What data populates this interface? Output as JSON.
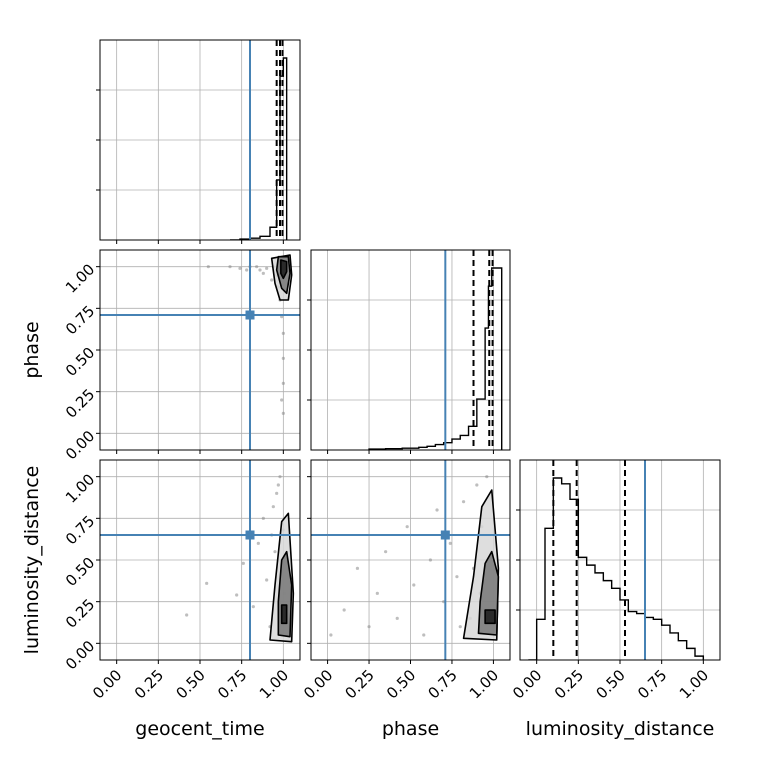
{
  "chart_data": {
    "type": "corner",
    "parameters": [
      "geocent_time",
      "phase",
      "luminosity_distance"
    ],
    "tick_values": [
      0.0,
      0.25,
      0.5,
      0.75,
      1.0
    ],
    "tick_labels": [
      "0.00",
      "0.25",
      "0.50",
      "0.75",
      "1.00"
    ],
    "axis_range": [
      -0.1,
      1.1
    ],
    "grid": true,
    "truths": {
      "geocent_time": 0.8,
      "phase": 0.71,
      "luminosity_distance": 0.65
    },
    "truth_color": "#4682b4",
    "histograms": [
      {
        "parameter": "geocent_time",
        "edges": [
          0.68,
          0.74,
          0.8,
          0.86,
          0.92,
          0.96,
          0.98,
          1.0,
          1.02
        ],
        "counts": [
          0.0,
          0.005,
          0.01,
          0.02,
          0.07,
          0.33,
          0.9,
          1.0
        ],
        "quantiles": [
          0.96,
          0.98,
          0.995
        ]
      },
      {
        "parameter": "phase",
        "edges": [
          0.25,
          0.35,
          0.45,
          0.55,
          0.6,
          0.65,
          0.7,
          0.75,
          0.8,
          0.85,
          0.9,
          0.95,
          0.97,
          0.99,
          1.05
        ],
        "counts": [
          0.005,
          0.007,
          0.01,
          0.015,
          0.02,
          0.03,
          0.04,
          0.06,
          0.08,
          0.13,
          0.28,
          0.67,
          0.9,
          1.0
        ],
        "quantiles": [
          0.88,
          0.975,
          0.995
        ]
      },
      {
        "parameter": "luminosity_distance",
        "edges": [
          -0.05,
          0.0,
          0.05,
          0.1,
          0.15,
          0.2,
          0.25,
          0.3,
          0.35,
          0.4,
          0.45,
          0.5,
          0.55,
          0.6,
          0.65,
          0.7,
          0.75,
          0.8,
          0.85,
          0.9,
          0.95,
          1.0
        ],
        "counts": [
          0.0,
          0.21,
          0.68,
          0.94,
          0.91,
          0.83,
          0.53,
          0.49,
          0.45,
          0.41,
          0.37,
          0.31,
          0.25,
          0.24,
          0.22,
          0.21,
          0.18,
          0.14,
          0.1,
          0.06,
          0.02
        ],
        "quantiles": [
          0.1,
          0.24,
          0.53
        ]
      }
    ],
    "scatter_panels": [
      {
        "x": "geocent_time",
        "y": "phase",
        "samples": [
          [
            0.55,
            1.0
          ],
          [
            0.68,
            1.0
          ],
          [
            0.74,
            0.99
          ],
          [
            0.8,
            1.0
          ],
          [
            0.86,
            0.98
          ],
          [
            0.9,
            0.99
          ],
          [
            0.94,
            1.0
          ],
          [
            0.96,
            0.95
          ],
          [
            0.97,
            0.88
          ],
          [
            0.98,
            0.8
          ],
          [
            0.99,
            0.7
          ],
          [
            1.0,
            0.6
          ],
          [
            1.0,
            0.45
          ],
          [
            1.0,
            0.3
          ],
          [
            0.99,
            0.2
          ],
          [
            1.0,
            0.12
          ],
          [
            0.93,
            0.92
          ],
          [
            0.88,
            0.96
          ],
          [
            0.78,
            0.98
          ],
          [
            0.84,
            1.0
          ]
        ],
        "contours": [
          [
            [
              0.985,
              1.04
            ],
            [
              1.02,
              1.03
            ],
            [
              1.02,
              0.97
            ],
            [
              1.0,
              0.93
            ],
            [
              0.985,
              0.96
            ]
          ],
          [
            [
              0.97,
              1.06
            ],
            [
              1.03,
              1.06
            ],
            [
              1.04,
              0.96
            ],
            [
              1.02,
              0.84
            ],
            [
              0.99,
              0.87
            ],
            [
              0.96,
              0.98
            ]
          ],
          [
            [
              0.93,
              1.05
            ],
            [
              1.04,
              1.07
            ],
            [
              1.05,
              0.95
            ],
            [
              1.03,
              0.8
            ],
            [
              0.98,
              0.8
            ],
            [
              0.95,
              0.9
            ]
          ]
        ]
      },
      {
        "x": "geocent_time",
        "y": "luminosity_distance",
        "samples": [
          [
            0.42,
            0.17
          ],
          [
            0.54,
            0.36
          ],
          [
            0.72,
            0.29
          ],
          [
            0.76,
            0.48
          ],
          [
            0.82,
            0.22
          ],
          [
            0.85,
            0.6
          ],
          [
            0.88,
            0.75
          ],
          [
            0.9,
            0.38
          ],
          [
            0.92,
            0.1
          ],
          [
            0.94,
            0.82
          ],
          [
            0.96,
            0.9
          ],
          [
            0.97,
            0.95
          ],
          [
            0.98,
            1.0
          ],
          [
            0.99,
            0.05
          ],
          [
            1.0,
            0.68
          ],
          [
            1.01,
            0.3
          ],
          [
            0.95,
            0.55
          ],
          [
            0.93,
            0.65
          ]
        ],
        "contours": [
          [
            [
              0.99,
              0.12
            ],
            [
              1.02,
              0.12
            ],
            [
              1.02,
              0.23
            ],
            [
              0.99,
              0.23
            ]
          ],
          [
            [
              0.97,
              0.05
            ],
            [
              1.04,
              0.04
            ],
            [
              1.05,
              0.35
            ],
            [
              1.02,
              0.55
            ],
            [
              0.99,
              0.5
            ],
            [
              0.97,
              0.25
            ]
          ],
          [
            [
              0.92,
              0.02
            ],
            [
              1.05,
              0.01
            ],
            [
              1.06,
              0.3
            ],
            [
              1.03,
              0.78
            ],
            [
              0.99,
              0.73
            ],
            [
              0.95,
              0.35
            ]
          ]
        ]
      },
      {
        "x": "phase",
        "y": "luminosity_distance",
        "samples": [
          [
            0.02,
            0.05
          ],
          [
            0.1,
            0.2
          ],
          [
            0.18,
            0.45
          ],
          [
            0.25,
            0.1
          ],
          [
            0.3,
            0.3
          ],
          [
            0.35,
            0.55
          ],
          [
            0.42,
            0.15
          ],
          [
            0.48,
            0.7
          ],
          [
            0.52,
            0.35
          ],
          [
            0.58,
            0.05
          ],
          [
            0.62,
            0.5
          ],
          [
            0.66,
            0.8
          ],
          [
            0.7,
            0.25
          ],
          [
            0.74,
            0.6
          ],
          [
            0.78,
            0.4
          ],
          [
            0.82,
            0.85
          ],
          [
            0.86,
            0.15
          ],
          [
            0.9,
            0.95
          ],
          [
            0.93,
            0.7
          ],
          [
            0.96,
            1.0
          ],
          [
            0.99,
            0.55
          ],
          [
            0.8,
            0.1
          ],
          [
            0.88,
            0.45
          ],
          [
            0.92,
            0.3
          ]
        ],
        "contours": [
          [
            [
              0.95,
              0.12
            ],
            [
              1.01,
              0.12
            ],
            [
              1.01,
              0.2
            ],
            [
              0.95,
              0.2
            ]
          ],
          [
            [
              0.91,
              0.06
            ],
            [
              1.02,
              0.05
            ],
            [
              1.03,
              0.4
            ],
            [
              0.99,
              0.55
            ],
            [
              0.95,
              0.48
            ],
            [
              0.92,
              0.25
            ]
          ],
          [
            [
              0.82,
              0.03
            ],
            [
              1.02,
              0.02
            ],
            [
              1.03,
              0.45
            ],
            [
              0.99,
              0.92
            ],
            [
              0.93,
              0.82
            ],
            [
              0.88,
              0.4
            ]
          ]
        ]
      }
    ]
  }
}
